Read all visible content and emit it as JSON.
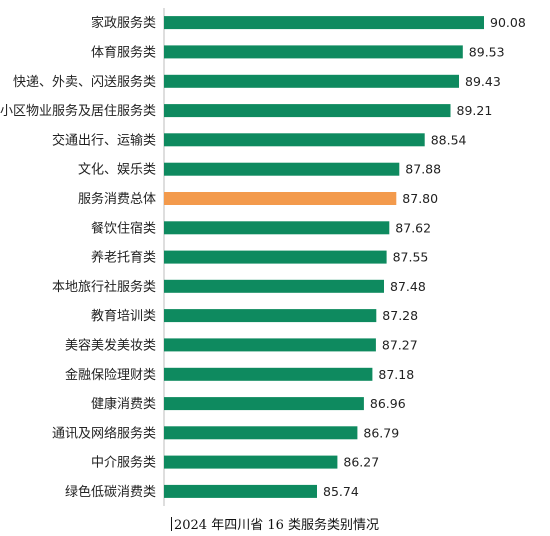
{
  "chart_data": {
    "type": "bar",
    "orientation": "horizontal",
    "title": "2024 年四川省 16 类服务类别情况",
    "categories": [
      "家政服务类",
      "体育服务类",
      "快递、外卖、闪送服务类",
      "小区物业服务及居住服务类",
      "交通出行、运输类",
      "文化、娱乐类",
      "服务消费总体",
      "餐饮住宿类",
      "养老托育类",
      "本地旅行社服务类",
      "教育培训类",
      "美容美发美妆类",
      "金融保险理财类",
      "健康消费类",
      "通讯及网络服务类",
      "中介服务类",
      "绿色低碳消费类"
    ],
    "values": [
      90.08,
      89.53,
      89.43,
      89.21,
      88.54,
      87.88,
      87.8,
      87.62,
      87.55,
      87.48,
      87.28,
      87.27,
      87.18,
      86.96,
      86.79,
      86.27,
      85.74
    ],
    "value_labels": [
      "90.08",
      "89.53",
      "89.43",
      "89.21",
      "88.54",
      "87.88",
      "87.80",
      "87.62",
      "87.55",
      "87.48",
      "87.28",
      "87.27",
      "87.18",
      "86.96",
      "86.79",
      "86.27",
      "85.74"
    ],
    "highlight_category": "服务消费总体",
    "colors": {
      "bar": "#0e8a5f",
      "highlight": "#f39a4c"
    },
    "axis_visible": false,
    "grid": false,
    "legend": "none"
  }
}
